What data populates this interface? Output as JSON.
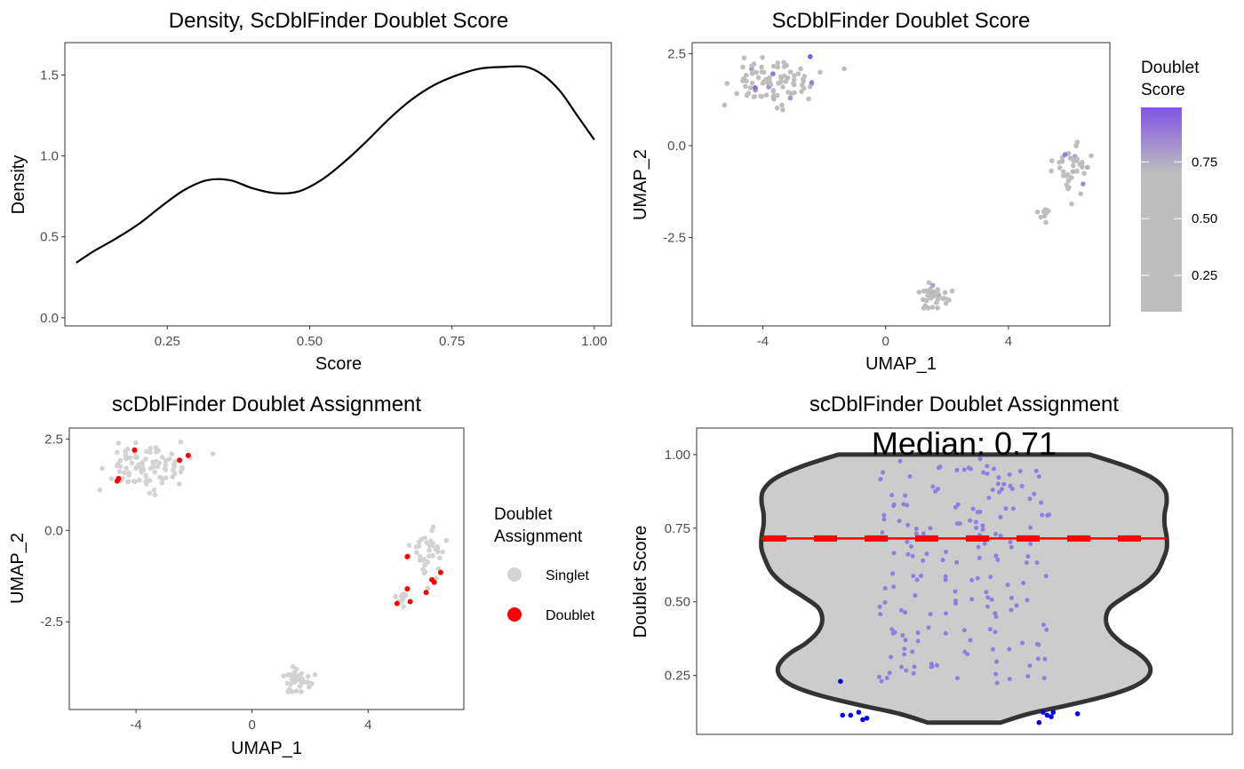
{
  "colors": {
    "grey": "#bebebe",
    "purple": "#7f55e5",
    "singlet": "#d3d3d3",
    "doublet": "#ff0000",
    "violin_fill": "#cccccc",
    "violin_outline": "#333333",
    "jitter": "#8e80e0",
    "outlier": "#0000ee",
    "median_line": "#ff0000"
  },
  "chart_data": [
    {
      "id": "density",
      "type": "line",
      "title": "Density, ScDblFinder Doublet Score",
      "xlabel": "Score",
      "ylabel": "Density",
      "xlim": [
        0.07,
        1.03
      ],
      "ylim": [
        -0.05,
        1.7
      ],
      "xticks": [
        0.25,
        0.5,
        0.75,
        1.0
      ],
      "xtick_labels": [
        "0.25",
        "0.50",
        "0.75",
        "1.00"
      ],
      "yticks": [
        0.0,
        0.5,
        1.0,
        1.5
      ],
      "ytick_labels": [
        "0.0",
        "0.5",
        "1.0",
        "1.5"
      ],
      "grid": false,
      "x": [
        0.09,
        0.12,
        0.16,
        0.2,
        0.24,
        0.28,
        0.32,
        0.36,
        0.4,
        0.44,
        0.48,
        0.52,
        0.56,
        0.6,
        0.64,
        0.68,
        0.72,
        0.76,
        0.8,
        0.84,
        0.88,
        0.91,
        0.94,
        0.97,
        1.0
      ],
      "y": [
        0.34,
        0.41,
        0.49,
        0.58,
        0.69,
        0.79,
        0.85,
        0.85,
        0.8,
        0.77,
        0.78,
        0.85,
        0.96,
        1.09,
        1.23,
        1.35,
        1.44,
        1.5,
        1.54,
        1.55,
        1.55,
        1.5,
        1.4,
        1.25,
        1.1
      ]
    },
    {
      "id": "umap_score",
      "type": "scatter",
      "title": "ScDblFinder Doublet Score",
      "xlabel": "UMAP_1",
      "ylabel": "UMAP_2",
      "xlim": [
        -6.3,
        7.3
      ],
      "ylim": [
        -4.9,
        2.8
      ],
      "xticks": [
        -4,
        0,
        4
      ],
      "xtick_labels": [
        "-4",
        "0",
        "4"
      ],
      "yticks": [
        2.5,
        0.0,
        -2.5
      ],
      "ytick_labels": [
        "2.5",
        "0.0",
        "-2.5"
      ],
      "grid": false,
      "legend": {
        "title_lines": [
          "Doublet",
          "Score"
        ],
        "placement": "right",
        "ticks": [
          0.75,
          0.5,
          0.25
        ],
        "tick_labels": [
          "0.75",
          "0.50",
          "0.25"
        ],
        "range": [
          0.09,
          0.99
        ],
        "scale_break": 0.7
      },
      "clusters": [
        {
          "cx": -3.7,
          "cy": 1.72,
          "sx": 1.0,
          "sy": 0.32,
          "n": 95
        },
        {
          "cx": 6.05,
          "cy": -0.65,
          "sx": 0.35,
          "sy": 0.42,
          "n": 40
        },
        {
          "cx": 5.15,
          "cy": -1.85,
          "sx": 0.15,
          "sy": 0.14,
          "n": 10
        },
        {
          "cx": 1.55,
          "cy": -4.15,
          "sx": 0.28,
          "sy": 0.18,
          "n": 38
        }
      ]
    },
    {
      "id": "umap_assignment",
      "type": "scatter",
      "title": "scDblFinder Doublet Assignment",
      "xlabel": "UMAP_1",
      "ylabel": "UMAP_2",
      "xlim": [
        -6.3,
        7.3
      ],
      "ylim": [
        -4.9,
        2.8
      ],
      "xticks": [
        -4,
        0,
        4
      ],
      "xtick_labels": [
        "-4",
        "0",
        "4"
      ],
      "yticks": [
        2.5,
        0.0,
        -2.5
      ],
      "ytick_labels": [
        "2.5",
        "0.0",
        "-2.5"
      ],
      "grid": false,
      "legend": {
        "title_lines": [
          "Doublet",
          "Assignment"
        ],
        "placement": "right",
        "items": [
          {
            "label": "Singlet",
            "color": "#d3d3d3"
          },
          {
            "label": "Doublet",
            "color": "#ff0000"
          }
        ]
      },
      "doublets": [
        {
          "x": -4.05,
          "y": 2.2
        },
        {
          "x": -2.5,
          "y": 1.92
        },
        {
          "x": -2.2,
          "y": 2.05
        },
        {
          "x": -4.6,
          "y": 1.42
        },
        {
          "x": -4.65,
          "y": 1.35
        },
        {
          "x": 5.35,
          "y": -0.72
        },
        {
          "x": 5.35,
          "y": -1.6
        },
        {
          "x": 5.45,
          "y": -1.95
        },
        {
          "x": 5.0,
          "y": -2.0
        },
        {
          "x": 6.2,
          "y": -1.35
        },
        {
          "x": 6.28,
          "y": -1.42
        },
        {
          "x": 6.5,
          "y": -1.15
        },
        {
          "x": 6.0,
          "y": -1.7
        }
      ]
    },
    {
      "id": "violin",
      "type": "violin",
      "title": "scDblFinder Doublet Assignment",
      "xlabel": "",
      "ylabel": "Doublet Score",
      "ylim": [
        0.05,
        1.09
      ],
      "yticks": [
        0.25,
        0.5,
        0.75,
        1.0
      ],
      "ytick_labels": [
        "0.25",
        "0.50",
        "0.75",
        "1.00"
      ],
      "grid": false,
      "annotation": "Median: 0.71",
      "median": 0.715,
      "range": [
        0.09,
        1.0
      ],
      "width_profile": {
        "y": [
          0.09,
          0.12,
          0.15,
          0.18,
          0.21,
          0.24,
          0.27,
          0.3,
          0.33,
          0.36,
          0.4,
          0.44,
          0.48,
          0.52,
          0.56,
          0.6,
          0.64,
          0.68,
          0.72,
          0.76,
          0.8,
          0.84,
          0.88,
          0.92,
          0.96,
          1.0
        ],
        "w": [
          0.18,
          0.32,
          0.52,
          0.7,
          0.83,
          0.9,
          0.92,
          0.9,
          0.85,
          0.78,
          0.72,
          0.7,
          0.72,
          0.8,
          0.89,
          0.95,
          0.98,
          1.0,
          1.0,
          0.99,
          0.99,
          1.0,
          0.99,
          0.93,
          0.8,
          0.62
        ]
      },
      "n_jitter": 180,
      "outliers": [
        {
          "x": -0.61,
          "y": 0.23
        },
        {
          "x": -0.6,
          "y": 0.115
        },
        {
          "x": -0.56,
          "y": 0.115
        },
        {
          "x": -0.52,
          "y": 0.125
        },
        {
          "x": -0.5,
          "y": 0.1
        },
        {
          "x": -0.48,
          "y": 0.105
        },
        {
          "x": 0.39,
          "y": 0.125
        },
        {
          "x": 0.41,
          "y": 0.115
        },
        {
          "x": 0.43,
          "y": 0.11
        },
        {
          "x": 0.44,
          "y": 0.125
        },
        {
          "x": 0.56,
          "y": 0.12
        },
        {
          "x": 0.37,
          "y": 0.09
        }
      ]
    }
  ]
}
